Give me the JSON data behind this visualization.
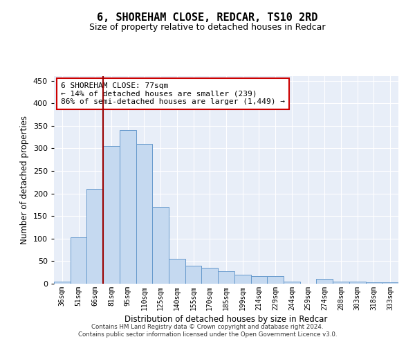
{
  "title": "6, SHOREHAM CLOSE, REDCAR, TS10 2RD",
  "subtitle": "Size of property relative to detached houses in Redcar",
  "xlabel": "Distribution of detached houses by size in Redcar",
  "ylabel": "Number of detached properties",
  "categories": [
    "36sqm",
    "51sqm",
    "66sqm",
    "81sqm",
    "95sqm",
    "110sqm",
    "125sqm",
    "140sqm",
    "155sqm",
    "170sqm",
    "185sqm",
    "199sqm",
    "214sqm",
    "229sqm",
    "244sqm",
    "259sqm",
    "274sqm",
    "288sqm",
    "303sqm",
    "318sqm",
    "333sqm"
  ],
  "values": [
    5,
    103,
    210,
    305,
    340,
    310,
    170,
    55,
    40,
    35,
    27,
    20,
    17,
    17,
    5,
    0,
    10,
    5,
    5,
    3,
    3
  ],
  "bar_color": "#c5d9f0",
  "bar_edge_color": "#6699cc",
  "vline_pos": 2.5,
  "annotation_text": "6 SHOREHAM CLOSE: 77sqm\n← 14% of detached houses are smaller (239)\n86% of semi-detached houses are larger (1,449) →",
  "annotation_box_color": "#ffffff",
  "annotation_box_edge_color": "#cc0000",
  "vline_color": "#990000",
  "footer_line1": "Contains HM Land Registry data © Crown copyright and database right 2024.",
  "footer_line2": "Contains public sector information licensed under the Open Government Licence v3.0.",
  "ylim": [
    0,
    460
  ],
  "yticks": [
    0,
    50,
    100,
    150,
    200,
    250,
    300,
    350,
    400,
    450
  ],
  "background_color": "#ffffff",
  "plot_bg_color": "#e8eef8",
  "grid_color": "#ffffff"
}
